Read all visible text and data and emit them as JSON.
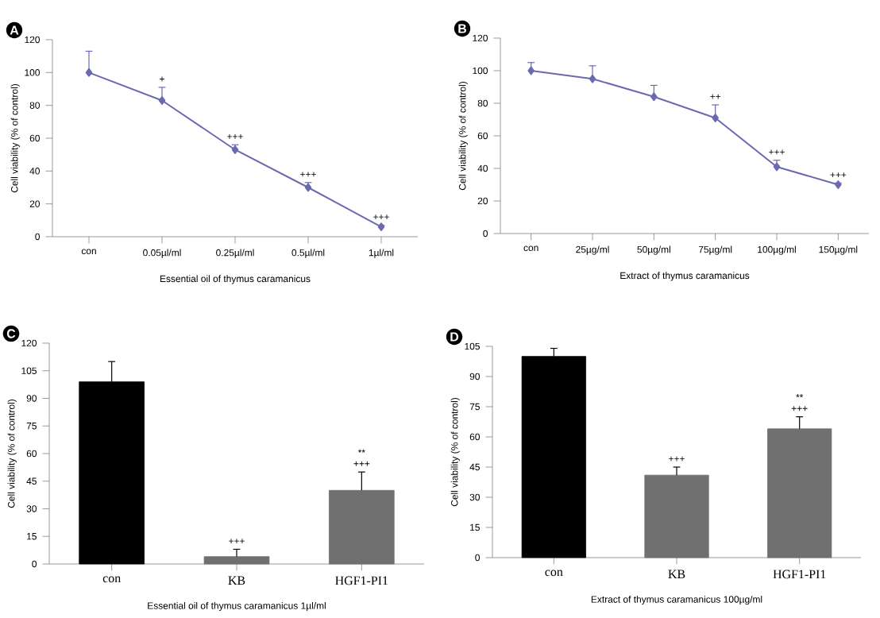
{
  "chart_data": [
    {
      "type": "line",
      "title": "A",
      "xlabel": "Essential oil of thymus caramanicus",
      "ylabel": "Cell viability (% of control)",
      "categories": [
        "con",
        "0.05µl/ml",
        "0.25µl/ml",
        "0.5µl/ml",
        "1µl/ml"
      ],
      "series": [
        {
          "color": "#6b69b0",
          "values": [
            100,
            83,
            53,
            30,
            6
          ],
          "errors": [
            [
              100,
              113
            ],
            [
              83,
              91
            ],
            [
              53,
              56
            ],
            [
              30,
              33
            ],
            [
              6,
              7
            ]
          ]
        }
      ],
      "ylim": [
        0,
        120
      ],
      "yticks": [
        0,
        20,
        40,
        60,
        80,
        100,
        120
      ],
      "marker": "diamond",
      "annotations": [
        "+",
        "+++",
        "+++",
        "+++"
      ]
    },
    {
      "type": "line",
      "title": "B",
      "xlabel": "Extract of thymus caramanicus",
      "ylabel": "Cell viability (% of control)",
      "categories": [
        "con",
        "25µg/ml",
        "50µg/ml",
        "75µg/ml",
        "100µg/ml",
        "150µg/ml"
      ],
      "series": [
        {
          "color": "#6b69b0",
          "values": [
            100,
            95,
            84,
            71,
            41,
            30
          ],
          "errors": [
            [
              100,
              105
            ],
            [
              95,
              103
            ],
            [
              84,
              91
            ],
            [
              71,
              79
            ],
            [
              41,
              45
            ],
            [
              30,
              31
            ]
          ]
        }
      ],
      "ylim": [
        0,
        120
      ],
      "yticks": [
        0,
        20,
        40,
        60,
        80,
        100,
        120
      ],
      "marker": "diamond",
      "annotations": [
        "++",
        "+++",
        "+++"
      ]
    },
    {
      "type": "bar",
      "title": "C",
      "xlabel": "Essential oil of thymus caramanicus  1µl/ml",
      "ylabel": "Cell viability (% of control)",
      "categories": [
        "con",
        "KB",
        "HGF1-PI1"
      ],
      "values": [
        99,
        4,
        40
      ],
      "colors": [
        "#000000",
        "#707070",
        "#707070"
      ],
      "errors": [
        [
          99,
          110
        ],
        [
          4,
          8
        ],
        [
          40,
          50
        ]
      ],
      "ylim": [
        0,
        120
      ],
      "yticks": [
        0,
        15,
        30,
        45,
        60,
        75,
        90,
        105,
        120
      ],
      "annotations": [
        "+++",
        "+++",
        "**"
      ]
    },
    {
      "type": "bar",
      "title": "D",
      "xlabel": "Extract of thymus caramanicus  100µg/ml",
      "ylabel": "Cell viability (% of control)",
      "categories": [
        "con",
        "KB",
        "HGF1-PI1"
      ],
      "values": [
        100,
        41,
        64
      ],
      "colors": [
        "#000000",
        "#707070",
        "#707070"
      ],
      "errors": [
        [
          100,
          104
        ],
        [
          41,
          45
        ],
        [
          64,
          70
        ]
      ],
      "ylim": [
        0,
        105
      ],
      "yticks": [
        0,
        15,
        30,
        45,
        60,
        75,
        90,
        105
      ],
      "annotations": [
        "+++",
        "+++",
        "**"
      ]
    }
  ]
}
